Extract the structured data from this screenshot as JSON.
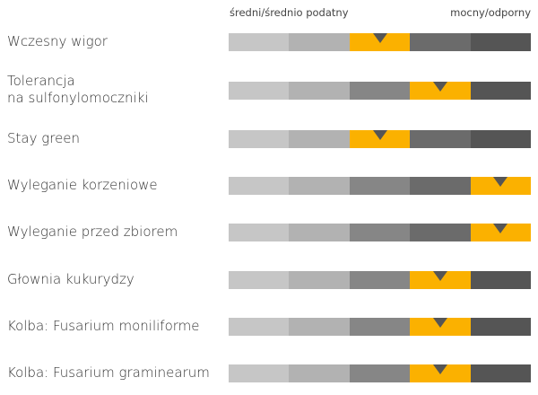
{
  "chart_data": {
    "type": "table",
    "scale": {
      "left_label": "średni/średnio podatny",
      "right_label": "mocny/odporny",
      "levels": 5
    },
    "segment_colors": [
      "#c6c6c6",
      "#b2b2b2",
      "#868686",
      "#6b6b6b",
      "#555555"
    ],
    "highlight_color": "#fbb100",
    "marker_color": "#555555",
    "rows": [
      {
        "label": "Wczesny wigor",
        "level": 3,
        "marker": 3.5
      },
      {
        "label": "Tolerancja\nna sulfonylomoczniki",
        "level": 4,
        "marker": 4.5
      },
      {
        "label": "Stay green",
        "level": 3,
        "marker": 3.5
      },
      {
        "label": "Wyleganie korzeniowe",
        "level": 5,
        "marker": 5.5
      },
      {
        "label": "Wyleganie przed zbiorem",
        "level": 5,
        "marker": 5.5
      },
      {
        "label": "Głownia kukurydzy",
        "level": 4,
        "marker": 4.5
      },
      {
        "label": "Kolba: Fusarium moniliforme",
        "level": 4,
        "marker": 4.5
      },
      {
        "label": "Kolba: Fusarium graminearum",
        "level": 4,
        "marker": 4.5
      }
    ]
  }
}
